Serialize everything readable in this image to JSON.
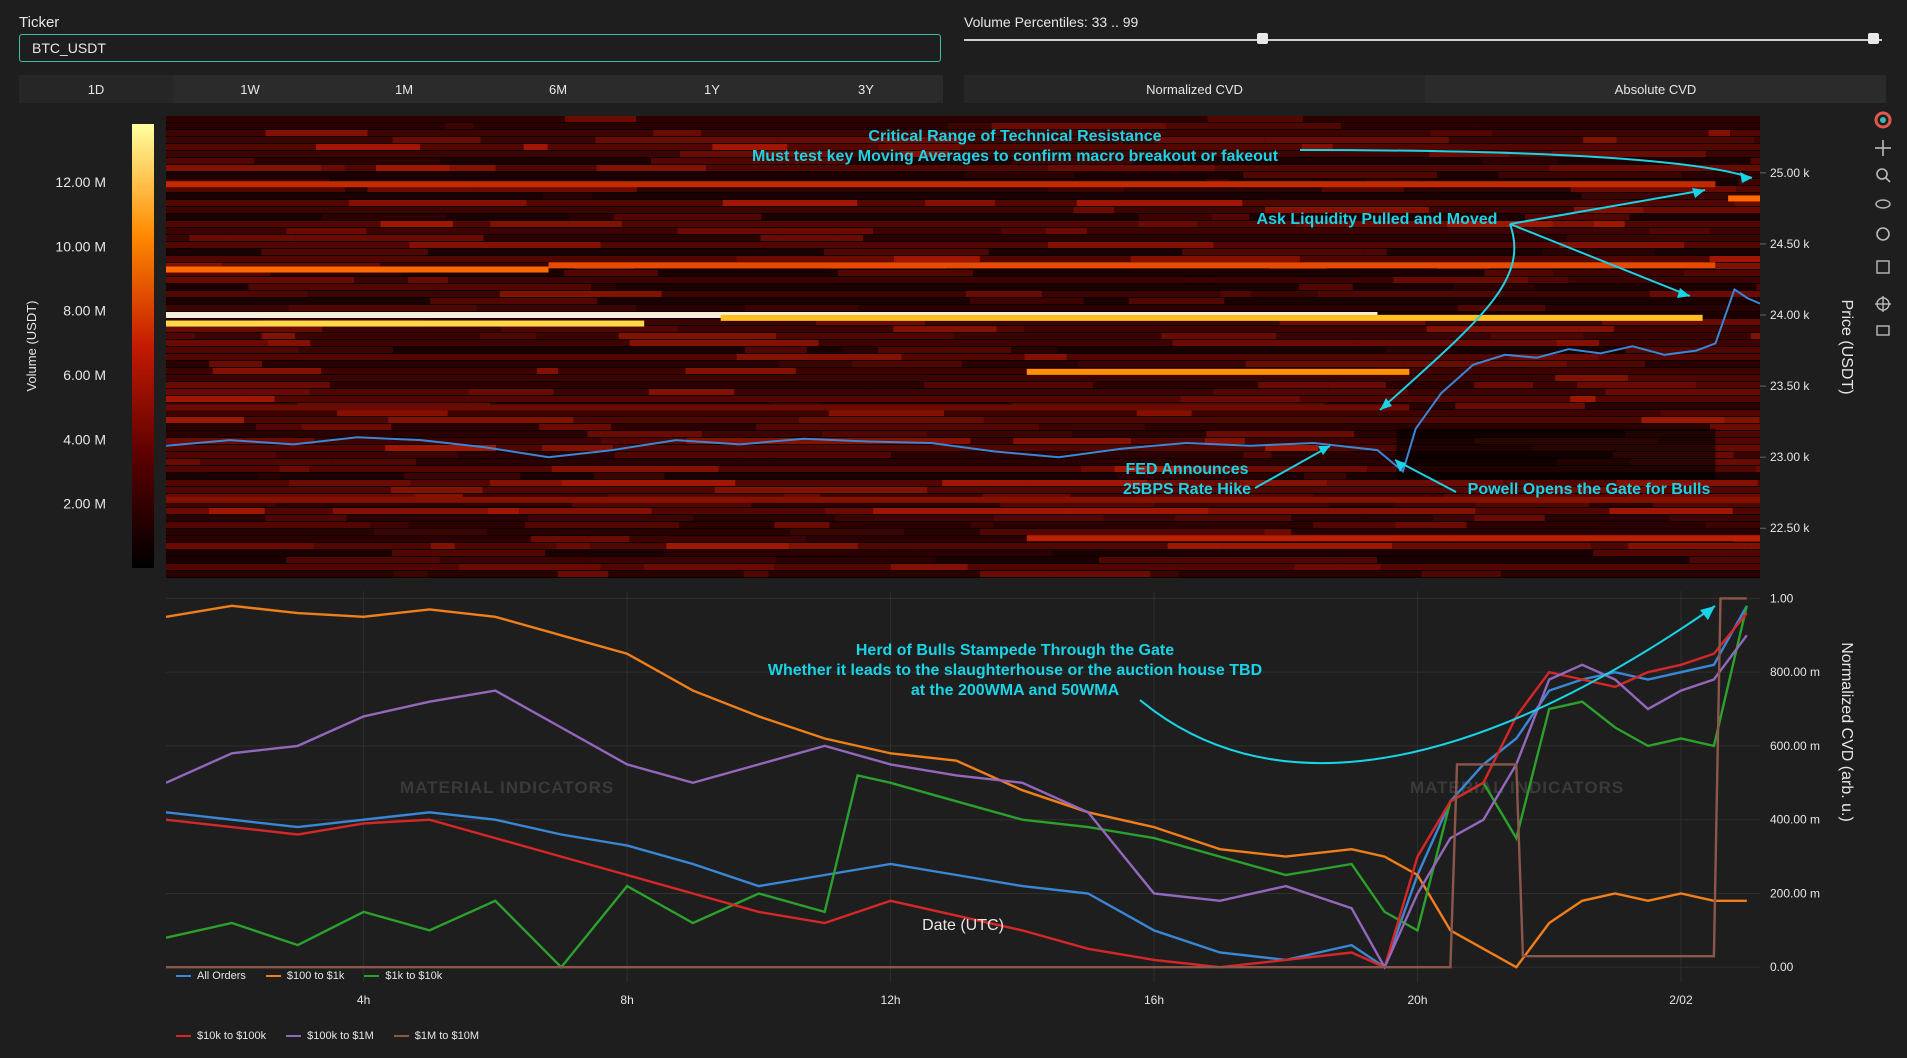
{
  "ticker": {
    "label": "Ticker",
    "value": "BTC_USDT"
  },
  "timeframes": [
    "1D",
    "1W",
    "1M",
    "6M",
    "1Y",
    "3Y"
  ],
  "active_timeframe": 0,
  "volume_percentiles": {
    "label": "Volume Percentiles: 33 .. 99",
    "low": 33,
    "high": 99
  },
  "cvd_modes": [
    "Normalized CVD",
    "Absolute CVD"
  ],
  "colors": {
    "accent": "#3fb9a8",
    "annotation": "#19d3e6",
    "price_line": "#3a87d6"
  },
  "watermark": "MATERIAL INDICATORS",
  "chart_data": [
    {
      "type": "heatmap",
      "ylabel": "Price (USDT)",
      "y_ticks": [
        "22.50 k",
        "23.00 k",
        "23.50 k",
        "24.00 k",
        "24.50 k",
        "25.00 k"
      ],
      "ylim": [
        22150,
        25400
      ],
      "colorbar": {
        "label": "Volume (USDT)",
        "ticks": [
          "2.00 M",
          "4.00 M",
          "6.00 M",
          "8.00 M",
          "10.00 M",
          "12.00 M"
        ],
        "range": [
          0,
          13.8
        ]
      },
      "price_series": {
        "x": [
          0,
          1,
          2,
          3,
          4,
          5,
          6,
          7,
          8,
          9,
          10,
          11,
          12,
          13,
          14,
          15,
          16,
          17,
          18,
          19,
          19.4,
          19.6,
          20,
          20.5,
          21,
          21.5,
          22,
          22.5,
          23,
          23.5,
          24,
          24.3,
          24.6,
          24.8,
          25
        ],
        "y": [
          23080,
          23120,
          23090,
          23140,
          23120,
          23070,
          23000,
          23050,
          23120,
          23090,
          23130,
          23110,
          23100,
          23040,
          23000,
          23060,
          23100,
          23080,
          23100,
          23050,
          22900,
          23200,
          23450,
          23650,
          23720,
          23700,
          23760,
          23730,
          23780,
          23720,
          23750,
          23800,
          24180,
          24120,
          24080
        ]
      },
      "annotations": [
        "Critical Range of Technical Resistance",
        "Must test key Moving Averages to confirm macro breakout or fakeout",
        "Ask Liquidity Pulled and Moved",
        "FED Announces",
        "25BPS Rate Hike",
        "Powell Opens the Gate for Bulls"
      ]
    },
    {
      "type": "line",
      "xlabel": "Date (UTC)",
      "ylabel": "Normalized CVD (arb. u.)",
      "x_ticks": [
        "4h",
        "8h",
        "12h",
        "16h",
        "20h",
        "2/02"
      ],
      "x_tick_values": [
        4,
        8,
        12,
        16,
        20,
        24
      ],
      "y_ticks": [
        "0.00",
        "200.00 m",
        "400.00 m",
        "600.00 m",
        "800.00 m",
        "1.00"
      ],
      "xlim": [
        1,
        25.2
      ],
      "ylim": [
        -0.04,
        1.02
      ],
      "series": [
        {
          "name": "All Orders",
          "color": "#3a87d6",
          "x": [
            1,
            2,
            3,
            4,
            5,
            6,
            7,
            8,
            9,
            10,
            11,
            12,
            13,
            14,
            15,
            16,
            17,
            18,
            19,
            19.5,
            20,
            20.5,
            21,
            21.5,
            22,
            22.5,
            23,
            23.5,
            24,
            24.5,
            25
          ],
          "y": [
            0.42,
            0.4,
            0.38,
            0.4,
            0.42,
            0.4,
            0.36,
            0.33,
            0.28,
            0.22,
            0.25,
            0.28,
            0.25,
            0.22,
            0.2,
            0.1,
            0.04,
            0.02,
            0.06,
            0.0,
            0.25,
            0.45,
            0.55,
            0.62,
            0.75,
            0.78,
            0.8,
            0.78,
            0.8,
            0.82,
            0.98
          ]
        },
        {
          "name": "$100 to $1k",
          "color": "#f07f19",
          "x": [
            1,
            2,
            3,
            4,
            5,
            6,
            7,
            8,
            9,
            10,
            11,
            12,
            13,
            14,
            15,
            16,
            17,
            18,
            19,
            19.5,
            20,
            20.5,
            21,
            21.5,
            22,
            22.5,
            23,
            23.5,
            24,
            24.5,
            25
          ],
          "y": [
            0.95,
            0.98,
            0.96,
            0.95,
            0.97,
            0.95,
            0.9,
            0.85,
            0.75,
            0.68,
            0.62,
            0.58,
            0.56,
            0.48,
            0.42,
            0.38,
            0.32,
            0.3,
            0.32,
            0.3,
            0.25,
            0.1,
            0.05,
            0.0,
            0.12,
            0.18,
            0.2,
            0.18,
            0.2,
            0.18,
            0.18
          ]
        },
        {
          "name": "$1k to $10k",
          "color": "#2ca02c",
          "x": [
            1,
            2,
            3,
            4,
            5,
            6,
            7,
            8,
            9,
            10,
            11,
            11.5,
            12,
            13,
            14,
            15,
            16,
            17,
            18,
            19,
            19.5,
            20,
            20.5,
            21,
            21.5,
            22,
            22.5,
            23,
            23.5,
            24,
            24.5,
            25
          ],
          "y": [
            0.08,
            0.12,
            0.06,
            0.15,
            0.1,
            0.18,
            0.0,
            0.22,
            0.12,
            0.2,
            0.15,
            0.52,
            0.5,
            0.45,
            0.4,
            0.38,
            0.35,
            0.3,
            0.25,
            0.28,
            0.15,
            0.1,
            0.45,
            0.5,
            0.35,
            0.7,
            0.72,
            0.65,
            0.6,
            0.62,
            0.6,
            0.98
          ]
        },
        {
          "name": "$10k to $100k",
          "color": "#d62728",
          "x": [
            1,
            2,
            3,
            4,
            5,
            6,
            7,
            8,
            9,
            10,
            11,
            12,
            13,
            14,
            15,
            16,
            17,
            18,
            19,
            19.5,
            20,
            20.5,
            21,
            21.5,
            22,
            22.5,
            23,
            23.5,
            24,
            24.5,
            25
          ],
          "y": [
            0.4,
            0.38,
            0.36,
            0.39,
            0.4,
            0.35,
            0.3,
            0.25,
            0.2,
            0.15,
            0.12,
            0.18,
            0.14,
            0.1,
            0.05,
            0.02,
            0.0,
            0.02,
            0.04,
            0.0,
            0.3,
            0.45,
            0.5,
            0.68,
            0.8,
            0.78,
            0.76,
            0.8,
            0.82,
            0.85,
            0.96
          ]
        },
        {
          "name": "$100k to $1M",
          "color": "#9467bd",
          "x": [
            1,
            2,
            3,
            4,
            5,
            6,
            7,
            8,
            9,
            10,
            11,
            12,
            13,
            14,
            15,
            16,
            17,
            18,
            19,
            19.5,
            20,
            20.5,
            21,
            21.5,
            22,
            22.5,
            23,
            23.5,
            24,
            24.5,
            25
          ],
          "y": [
            0.5,
            0.58,
            0.6,
            0.68,
            0.72,
            0.75,
            0.65,
            0.55,
            0.5,
            0.55,
            0.6,
            0.55,
            0.52,
            0.5,
            0.42,
            0.2,
            0.18,
            0.22,
            0.16,
            0.0,
            0.2,
            0.35,
            0.4,
            0.55,
            0.78,
            0.82,
            0.78,
            0.7,
            0.75,
            0.78,
            0.9
          ]
        },
        {
          "name": "$1M to $10M",
          "color": "#8c564b",
          "x": [
            1,
            20.5,
            20.6,
            21.5,
            21.6,
            24.5,
            24.6,
            25
          ],
          "y": [
            0.0,
            0.0,
            0.55,
            0.55,
            0.03,
            0.03,
            1.0,
            1.0
          ]
        }
      ],
      "annotations": [
        "Herd of Bulls Stampede Through the Gate",
        "Whether it leads to the slaughterhouse or the auction house TBD",
        "at the 200WMA and 50WMA"
      ]
    }
  ]
}
